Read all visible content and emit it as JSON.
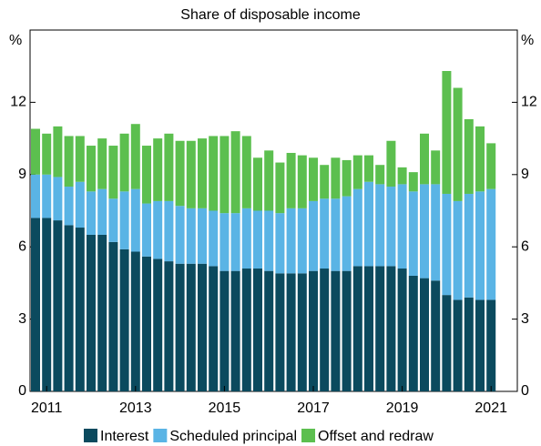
{
  "chart_data": {
    "type": "stacked-bar",
    "subtitle": "Share of disposable income",
    "y_unit": "%",
    "categories": [
      null,
      "2011",
      null,
      null,
      null,
      null,
      null,
      null,
      null,
      "2013",
      null,
      null,
      null,
      null,
      null,
      null,
      null,
      "2015",
      null,
      null,
      null,
      null,
      null,
      null,
      null,
      "2017",
      null,
      null,
      null,
      null,
      null,
      null,
      null,
      "2019",
      null,
      null,
      null,
      null,
      null,
      null,
      null,
      "2021"
    ],
    "series": [
      {
        "name": "Interest",
        "color": "#0b4a5e",
        "values": [
          7.2,
          7.2,
          7.1,
          6.9,
          6.8,
          6.5,
          6.5,
          6.2,
          5.9,
          5.8,
          5.6,
          5.5,
          5.4,
          5.3,
          5.3,
          5.3,
          5.2,
          5.0,
          5.0,
          5.1,
          5.1,
          5.0,
          4.9,
          4.9,
          4.9,
          5.0,
          5.1,
          5.0,
          5.0,
          5.2,
          5.2,
          5.2,
          5.2,
          5.1,
          4.8,
          4.7,
          4.6,
          4.0,
          3.8,
          3.9,
          3.8,
          3.8
        ]
      },
      {
        "name": "Scheduled principal",
        "color": "#5ab4e5",
        "values": [
          1.8,
          1.8,
          1.8,
          1.6,
          1.9,
          1.8,
          1.9,
          1.8,
          2.4,
          2.6,
          2.2,
          2.4,
          2.5,
          2.4,
          2.3,
          2.3,
          2.3,
          2.4,
          2.4,
          2.5,
          2.4,
          2.5,
          2.5,
          2.7,
          2.7,
          2.9,
          2.9,
          3.0,
          3.1,
          3.2,
          3.5,
          3.4,
          3.3,
          3.5,
          3.5,
          3.9,
          4.0,
          4.2,
          4.1,
          4.3,
          4.5,
          4.6
        ]
      },
      {
        "name": "Offset and redraw",
        "color": "#5cbf4f",
        "values": [
          1.9,
          1.7,
          2.1,
          2.1,
          1.9,
          1.9,
          2.1,
          2.2,
          2.4,
          2.7,
          2.4,
          2.6,
          2.8,
          2.7,
          2.8,
          2.9,
          3.1,
          3.2,
          3.4,
          3.0,
          2.2,
          2.5,
          2.1,
          2.3,
          2.2,
          1.8,
          1.4,
          1.7,
          1.5,
          1.4,
          1.1,
          0.8,
          1.9,
          0.7,
          0.8,
          2.1,
          1.4,
          5.1,
          4.7,
          3.1,
          2.7,
          1.9
        ]
      }
    ],
    "ylim": [
      0,
      15
    ],
    "yticks": [
      0,
      3,
      6,
      9,
      12
    ]
  }
}
